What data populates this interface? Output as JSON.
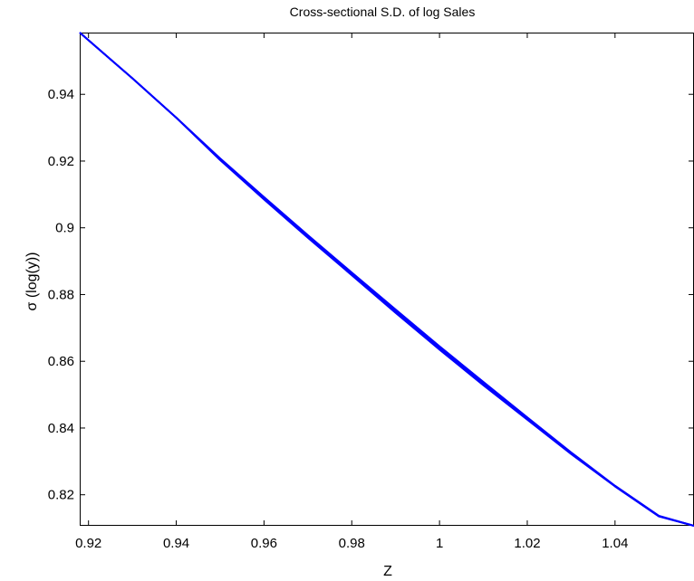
{
  "chart_data": {
    "type": "line",
    "title": "Cross-sectional S.D. of log Sales",
    "xlabel": "Z",
    "ylabel": "σ (log(y))",
    "xlim": [
      0.918,
      1.058
    ],
    "ylim": [
      0.8107,
      0.9585
    ],
    "x_ticks": [
      0.92,
      0.94,
      0.96,
      0.98,
      1.0,
      1.02,
      1.04
    ],
    "x_tick_labels": [
      "0.92",
      "0.94",
      "0.96",
      "0.98",
      "1",
      "1.02",
      "1.04"
    ],
    "y_ticks": [
      0.82,
      0.84,
      0.86,
      0.88,
      0.9,
      0.92,
      0.94
    ],
    "y_tick_labels": [
      "0.82",
      "0.84",
      "0.86",
      "0.88",
      "0.9",
      "0.92",
      "0.94"
    ],
    "grid": false,
    "legend": "none",
    "series_color": "#0000ff",
    "series": [
      {
        "x": [
          0.918,
          0.93,
          0.94,
          0.95,
          0.96,
          0.97,
          0.98,
          0.99,
          1.0,
          1.01,
          1.02,
          1.03,
          1.04,
          1.05,
          1.058
        ],
        "y": [
          0.9585,
          0.9448,
          0.933,
          0.9208,
          0.9092,
          0.8978,
          0.8866,
          0.8755,
          0.8645,
          0.8538,
          0.8432,
          0.8327,
          0.8227,
          0.8137,
          0.8107
        ]
      },
      {
        "x": [
          0.918,
          0.93,
          0.94,
          0.95,
          0.96,
          0.97,
          0.98,
          0.99,
          1.0,
          1.01,
          1.02,
          1.03,
          1.04,
          1.05,
          1.058
        ],
        "y": [
          0.9585,
          0.9448,
          0.933,
          0.9203,
          0.9085,
          0.897,
          0.8858,
          0.8745,
          0.8635,
          0.8528,
          0.8425,
          0.8322,
          0.8225,
          0.8135,
          0.8107
        ]
      },
      {
        "x": [
          0.918,
          0.93,
          0.94,
          0.95,
          0.96,
          0.97,
          0.98,
          0.99,
          1.0,
          1.01,
          1.02,
          1.03,
          1.04,
          1.05,
          1.058
        ],
        "y": [
          0.9585,
          0.9448,
          0.933,
          0.9205,
          0.9088,
          0.8974,
          0.8862,
          0.875,
          0.864,
          0.8533,
          0.8428,
          0.8325,
          0.8226,
          0.8136,
          0.8107
        ]
      }
    ]
  }
}
